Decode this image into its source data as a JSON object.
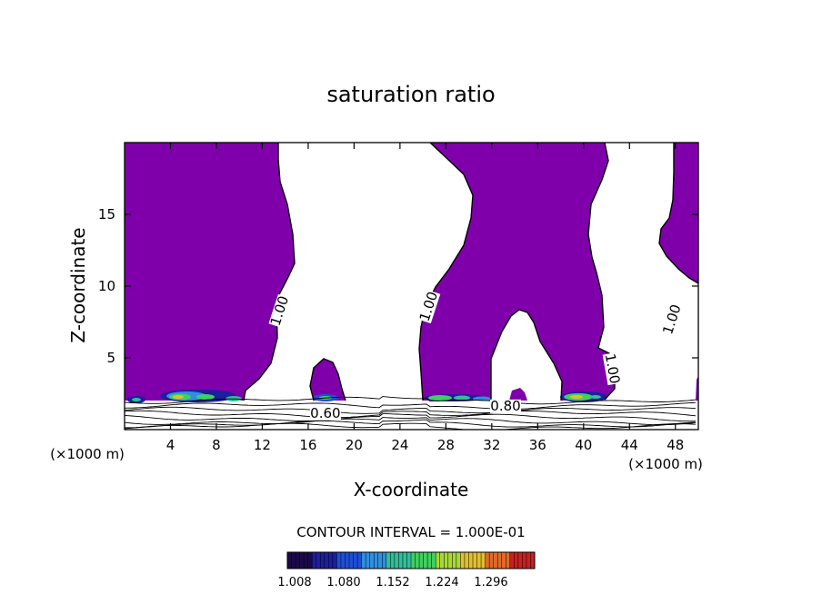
{
  "chart_data": {
    "type": "heatmap",
    "title": "saturation ratio",
    "xlabel": "X-coordinate",
    "ylabel": "Z-coordinate",
    "x_unit": "(×1000 m)",
    "xlim": [
      0,
      50
    ],
    "ylim": [
      0,
      20
    ],
    "x_ticks": [
      4,
      8,
      12,
      16,
      20,
      24,
      28,
      32,
      36,
      40,
      44,
      48
    ],
    "y_ticks": [
      5,
      10,
      15
    ],
    "contour_interval": "CONTOUR INTERVAL = 1.000E-01",
    "contour_labels": [
      {
        "text": "1.00",
        "x": 13.8,
        "z": 8.2
      },
      {
        "text": "1.00",
        "x": 26.8,
        "z": 8.5
      },
      {
        "text": "1.00",
        "x": 48.0,
        "z": 7.6
      },
      {
        "text": "1.00",
        "x": 42.2,
        "z": 4.2
      },
      {
        "text": "0.60",
        "x": 17.5,
        "z": 0.9
      },
      {
        "text": "0.80",
        "x": 33.2,
        "z": 1.4
      }
    ],
    "colorbar": {
      "ticks": [
        "1.008",
        "1.080",
        "1.152",
        "1.224",
        "1.296"
      ],
      "colors": [
        "#1a0a4a",
        "#1b1f9e",
        "#1e4fd8",
        "#2f8fe0",
        "#2fbf9a",
        "#3fd060",
        "#a8d838",
        "#e0c030",
        "#e06a28",
        "#c82020"
      ]
    },
    "saturated_fill_color": "#7f00aa",
    "grid": false,
    "legend": "bottom"
  }
}
